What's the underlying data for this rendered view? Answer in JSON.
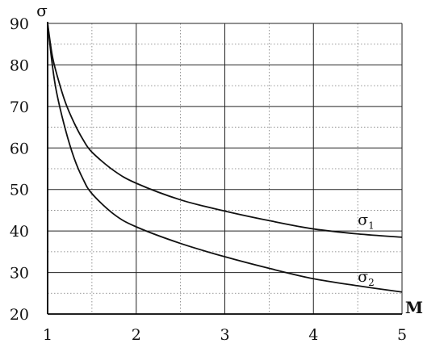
{
  "chart_data": {
    "type": "line",
    "xlabel": "M",
    "ylabel": "σ",
    "xlim": [
      1,
      5
    ],
    "ylim": [
      20,
      90
    ],
    "x_ticks": [
      "1",
      "2",
      "3",
      "4",
      "5"
    ],
    "y_ticks": [
      "20",
      "30",
      "40",
      "50",
      "60",
      "70",
      "80",
      "90"
    ],
    "grid": true,
    "series": [
      {
        "name": "σ1",
        "x": [
          1.0,
          1.05,
          1.1,
          1.2,
          1.3,
          1.4,
          1.5,
          1.75,
          2.0,
          2.5,
          3.0,
          3.5,
          4.0,
          4.5,
          5.0
        ],
        "y": [
          90,
          82.5,
          78,
          71,
          66,
          62,
          59,
          54.5,
          51.5,
          47.5,
          44.8,
          42.5,
          40.5,
          39.3,
          38.5
        ]
      },
      {
        "name": "σ2",
        "x": [
          1.0,
          1.05,
          1.1,
          1.2,
          1.3,
          1.4,
          1.5,
          1.75,
          2.0,
          2.5,
          3.0,
          3.5,
          4.0,
          4.5,
          5.0
        ],
        "y": [
          90,
          80.5,
          73.5,
          64.5,
          57.5,
          52.5,
          49,
          44,
          41,
          37,
          33.8,
          31,
          28.5,
          26.8,
          25.3
        ]
      }
    ],
    "curve_labels": [
      {
        "main": "σ",
        "sub": "1",
        "x": 4.5,
        "y": 41.5
      },
      {
        "main": "σ",
        "sub": "2",
        "x": 4.5,
        "y": 27.8
      }
    ]
  }
}
